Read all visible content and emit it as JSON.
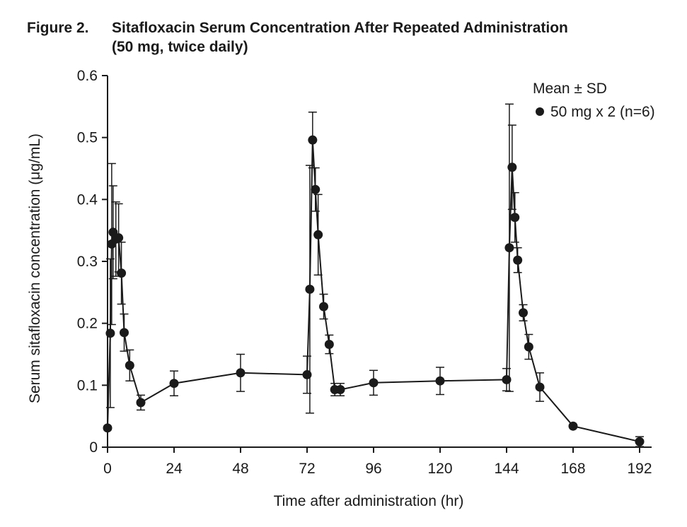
{
  "figure": {
    "label": "Figure 2.",
    "title_line1": "Sitafloxacin Serum Concentration After Repeated Administration",
    "title_line2": "(50 mg, twice daily)"
  },
  "chart_data": {
    "type": "line",
    "title": "Sitafloxacin Serum Concentration After Repeated Administration (50 mg, twice daily)",
    "xlabel": "Time after administration (hr)",
    "ylabel": "Serum sitafloxacin concentration (μg/mL)",
    "xlim": [
      0,
      192
    ],
    "ylim": [
      0,
      0.6
    ],
    "xticks": [
      0,
      24,
      48,
      72,
      96,
      120,
      144,
      168,
      192
    ],
    "yticks": [
      0,
      0.1,
      0.2,
      0.3,
      0.4,
      0.5,
      0.6
    ],
    "ytick_labels": [
      "0",
      "0.1",
      "0.2",
      "0.3",
      "0.4",
      "0.5",
      "0.6"
    ],
    "grid": false,
    "legend": {
      "title": "Mean ± SD",
      "position": "top-right",
      "entries": [
        "50 mg x 2 (n=6)"
      ]
    },
    "series": [
      {
        "name": "50 mg x 2 (n=6)",
        "color": "#1a1a1a",
        "x": [
          0,
          1,
          1.5,
          2,
          3,
          4,
          5,
          6,
          8,
          12,
          24,
          48,
          72,
          73,
          74,
          75,
          76,
          78,
          80,
          82,
          84,
          96,
          120,
          144,
          145,
          146,
          147,
          148,
          150,
          152,
          156,
          168,
          192
        ],
        "y": [
          0.031,
          0.184,
          0.328,
          0.347,
          0.336,
          0.338,
          0.281,
          0.185,
          0.132,
          0.072,
          0.103,
          0.12,
          0.117,
          0.255,
          0.496,
          0.416,
          0.343,
          0.227,
          0.166,
          0.093,
          0.093,
          0.104,
          0.107,
          0.109,
          0.322,
          0.452,
          0.371,
          0.302,
          0.217,
          0.162,
          0.097,
          0.034,
          0.009
        ],
        "err": [
          0,
          0.12,
          0.13,
          0.075,
          0.06,
          0.055,
          0.05,
          0.03,
          0.025,
          0.012,
          0.02,
          0.03,
          0.03,
          0.2,
          0.045,
          0.035,
          0.065,
          0.02,
          0.015,
          0.01,
          0.01,
          0.02,
          0.022,
          0.018,
          0.232,
          0.068,
          0.04,
          0.02,
          0.013,
          0.02,
          0.023,
          0,
          0.008
        ]
      }
    ]
  }
}
